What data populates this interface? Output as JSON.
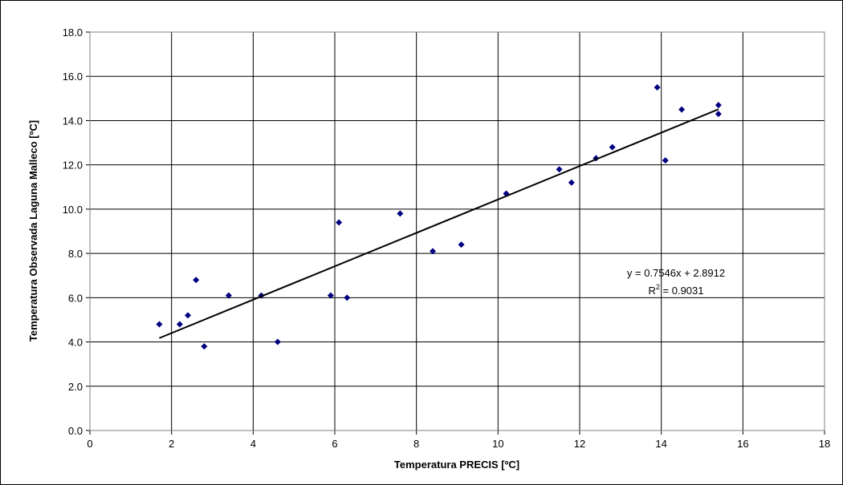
{
  "chart_data": {
    "type": "scatter",
    "title": "",
    "xlabel": "Temperatura PRECIS [ºC]",
    "ylabel": "Temperatura Observada Laguna Malleco [ºC]",
    "xlim": [
      0,
      18
    ],
    "ylim": [
      0,
      18
    ],
    "x_ticks": [
      "0",
      "2",
      "4",
      "6",
      "8",
      "10",
      "12",
      "14",
      "16",
      "18"
    ],
    "y_ticks": [
      "0.0",
      "2.0",
      "4.0",
      "6.0",
      "8.0",
      "10.0",
      "12.0",
      "14.0",
      "16.0",
      "18.0"
    ],
    "grid": true,
    "marker_color": "#000080",
    "points": [
      {
        "x": 1.7,
        "y": 4.8
      },
      {
        "x": 2.2,
        "y": 4.8
      },
      {
        "x": 2.4,
        "y": 5.2
      },
      {
        "x": 2.6,
        "y": 6.8
      },
      {
        "x": 2.8,
        "y": 3.8
      },
      {
        "x": 3.4,
        "y": 6.1
      },
      {
        "x": 4.2,
        "y": 6.1
      },
      {
        "x": 4.6,
        "y": 4.0
      },
      {
        "x": 5.9,
        "y": 6.1
      },
      {
        "x": 6.1,
        "y": 9.4
      },
      {
        "x": 6.3,
        "y": 6.0
      },
      {
        "x": 7.6,
        "y": 9.8
      },
      {
        "x": 8.4,
        "y": 8.1
      },
      {
        "x": 9.1,
        "y": 8.4
      },
      {
        "x": 10.2,
        "y": 10.7
      },
      {
        "x": 11.5,
        "y": 11.8
      },
      {
        "x": 11.8,
        "y": 11.2
      },
      {
        "x": 12.4,
        "y": 12.3
      },
      {
        "x": 12.8,
        "y": 12.8
      },
      {
        "x": 13.9,
        "y": 15.5
      },
      {
        "x": 14.1,
        "y": 12.2
      },
      {
        "x": 14.5,
        "y": 14.5
      },
      {
        "x": 15.4,
        "y": 14.7
      },
      {
        "x": 15.4,
        "y": 14.3
      }
    ],
    "trendline": {
      "slope": 0.7546,
      "intercept": 2.8912,
      "x_range": [
        1.7,
        15.4
      ],
      "equation_label": "y = 0.7546x + 2.8912",
      "r2_prefix": "R",
      "r2_sup": "2",
      "r2_value": " = 0.9031"
    }
  }
}
